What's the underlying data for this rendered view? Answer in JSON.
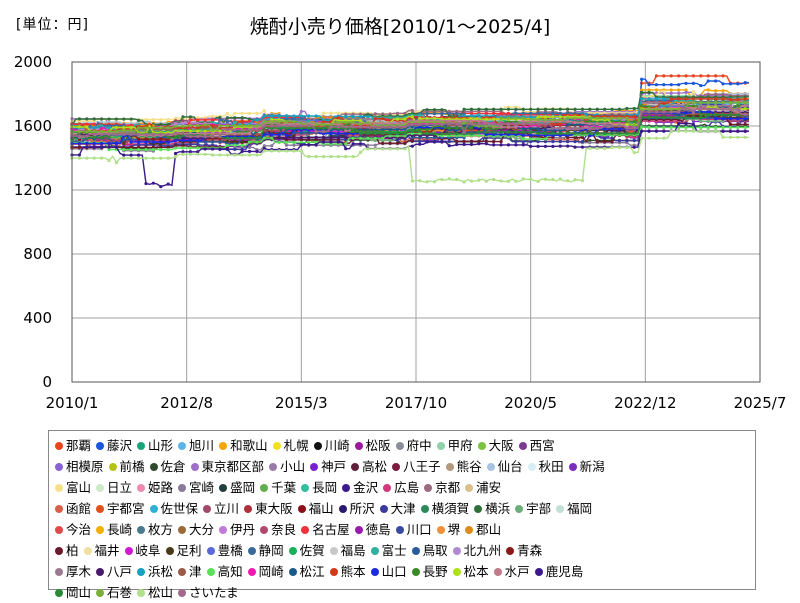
{
  "chart_data": {
    "type": "line",
    "title": "焼酎小売り価格[2010/1～2025/4]",
    "unit_label": "[単位：円]",
    "ylim": [
      0,
      2000
    ],
    "xlim": [
      2010.0,
      2025.5
    ],
    "y_ticks": [
      0,
      400,
      800,
      1200,
      1600,
      2000
    ],
    "x_ticks": [
      {
        "label": "2010/1",
        "value": 2010.0
      },
      {
        "label": "2012/8",
        "value": 2012.583
      },
      {
        "label": "2015/3",
        "value": 2015.167
      },
      {
        "label": "2017/10",
        "value": 2017.75
      },
      {
        "label": "2020/5",
        "value": 2020.333
      },
      {
        "label": "2022/12",
        "value": 2022.917
      },
      {
        "label": "2025/7",
        "value": 2025.5
      }
    ],
    "series": [
      {
        "name": "那覇",
        "color": "#e8451f",
        "base": 1620,
        "late": 1890
      },
      {
        "name": "藤沢",
        "color": "#1a56db",
        "base": 1560,
        "late": 1880
      },
      {
        "name": "山形",
        "color": "#1aa37a",
        "base": 1600,
        "late": 1720
      },
      {
        "name": "旭川",
        "color": "#5ab4e8",
        "base": 1580,
        "late": 1700
      },
      {
        "name": "和歌山",
        "color": "#f5a400",
        "base": 1640,
        "late": 1800
      },
      {
        "name": "札幌",
        "color": "#f0e020",
        "base": 1600,
        "late": 1760
      },
      {
        "name": "川崎",
        "color": "#111111",
        "base": 1580,
        "late": 1740
      },
      {
        "name": "松阪",
        "color": "#9b1a9b",
        "base": 1530,
        "late": 1650
      },
      {
        "name": "府中",
        "color": "#8a8f99",
        "base": 1570,
        "late": 1690
      },
      {
        "name": "甲府",
        "color": "#8fd1a8",
        "base": 1620,
        "late": 1760
      },
      {
        "name": "大阪",
        "color": "#7cc242",
        "base": 1560,
        "late": 1700
      },
      {
        "name": "西宮",
        "color": "#7b3b8f",
        "base": 1540,
        "late": 1660
      },
      {
        "name": "相模原",
        "color": "#8a63d2",
        "base": 1590,
        "late": 1720
      },
      {
        "name": "前橋",
        "color": "#b5c21a",
        "base": 1610,
        "late": 1740
      },
      {
        "name": "佐倉",
        "color": "#2f4a2f",
        "base": 1500,
        "late": 1620
      },
      {
        "name": "東京都区部",
        "color": "#a070c8",
        "base": 1650,
        "late": 1800
      },
      {
        "name": "小山",
        "color": "#9a7aa8",
        "base": 1570,
        "late": 1700
      },
      {
        "name": "神戸",
        "color": "#7a1fd1",
        "base": 1540,
        "late": 1680
      },
      {
        "name": "高松",
        "color": "#5e1f3b",
        "base": 1600,
        "late": 1730
      },
      {
        "name": "八王子",
        "color": "#7b1a3f",
        "base": 1620,
        "late": 1750
      },
      {
        "name": "熊谷",
        "color": "#b39a7f",
        "base": 1550,
        "late": 1670
      },
      {
        "name": "仙台",
        "color": "#a8c4e0",
        "base": 1630,
        "late": 1780
      },
      {
        "name": "秋田",
        "color": "#d8eef5",
        "base": 1580,
        "late": 1710
      },
      {
        "name": "新潟",
        "color": "#7a2dbf",
        "base": 1510,
        "late": 1640
      },
      {
        "name": "富山",
        "color": "#f5e08a",
        "base": 1660,
        "late": 1790
      },
      {
        "name": "日立",
        "color": "#cfe8c8",
        "base": 1570,
        "late": 1690
      },
      {
        "name": "姫路",
        "color": "#f08ab0",
        "base": 1590,
        "late": 1720
      },
      {
        "name": "宮崎",
        "color": "#8a7a9a",
        "base": 1480,
        "late": 1600
      },
      {
        "name": "盛岡",
        "color": "#1f3f3a",
        "base": 1550,
        "late": 1680
      },
      {
        "name": "千葉",
        "color": "#5fb04a",
        "base": 1600,
        "late": 1740
      },
      {
        "name": "長岡",
        "color": "#2fbf9f",
        "base": 1560,
        "late": 1690
      },
      {
        "name": "金沢",
        "color": "#3a1a8f",
        "base": 1620,
        "late": 1760
      },
      {
        "name": "広島",
        "color": "#d03a7a",
        "base": 1530,
        "late": 1660
      },
      {
        "name": "京都",
        "color": "#9a6a7f",
        "base": 1640,
        "late": 1770
      },
      {
        "name": "浦安",
        "color": "#d8c08a",
        "base": 1580,
        "late": 1710
      },
      {
        "name": "函館",
        "color": "#d8604a",
        "base": 1500,
        "late": 1630
      },
      {
        "name": "宇都宮",
        "color": "#e0501a",
        "base": 1560,
        "late": 1690
      },
      {
        "name": "佐世保",
        "color": "#2fb0d8",
        "base": 1600,
        "late": 1730
      },
      {
        "name": "立川",
        "color": "#a04a6a",
        "base": 1620,
        "late": 1750
      },
      {
        "name": "東大阪",
        "color": "#b0303a",
        "base": 1540,
        "late": 1670
      },
      {
        "name": "福山",
        "color": "#8a0f1a",
        "base": 1580,
        "late": 1700
      },
      {
        "name": "所沢",
        "color": "#2a1a6f",
        "base": 1610,
        "late": 1740
      },
      {
        "name": "大津",
        "color": "#3a3a9f",
        "base": 1490,
        "late": 1610
      },
      {
        "name": "横須賀",
        "color": "#2a8a5a",
        "base": 1570,
        "late": 1700
      },
      {
        "name": "横浜",
        "color": "#2f6f3a",
        "base": 1650,
        "late": 1780
      },
      {
        "name": "宇部",
        "color": "#6fae7a",
        "base": 1520,
        "late": 1650
      },
      {
        "name": "福岡",
        "color": "#c0e0d8",
        "base": 1590,
        "late": 1720
      },
      {
        "name": "今治",
        "color": "#e04a4a",
        "base": 1560,
        "late": 1690
      },
      {
        "name": "長崎",
        "color": "#f0b000",
        "base": 1610,
        "late": 1740
      },
      {
        "name": "枚方",
        "color": "#4a7a8f",
        "base": 1540,
        "late": 1670
      },
      {
        "name": "大分",
        "color": "#9a6a3a",
        "base": 1580,
        "late": 1700
      },
      {
        "name": "伊丹",
        "color": "#c07ad8",
        "base": 1600,
        "late": 1730
      },
      {
        "name": "奈良",
        "color": "#b04a6a",
        "base": 1530,
        "late": 1660
      },
      {
        "name": "名古屋",
        "color": "#f0303a",
        "base": 1620,
        "late": 1750
      },
      {
        "name": "徳島",
        "color": "#9a1ab0",
        "base": 1550,
        "late": 1680
      },
      {
        "name": "川口",
        "color": "#3a4a9f",
        "base": 1590,
        "late": 1720
      },
      {
        "name": "堺",
        "color": "#f0903a",
        "base": 1570,
        "late": 1700
      },
      {
        "name": "郡山",
        "color": "#e08a1a",
        "base": 1610,
        "late": 1740
      },
      {
        "name": "柏",
        "color": "#6a1a2a",
        "base": 1500,
        "late": 1630
      },
      {
        "name": "福井",
        "color": "#f0e0a0",
        "base": 1580,
        "late": 1710
      },
      {
        "name": "岐阜",
        "color": "#d01ad0",
        "base": 1560,
        "late": 1690
      },
      {
        "name": "足利",
        "color": "#4a3a1a",
        "base": 1540,
        "late": 1670
      },
      {
        "name": "豊橋",
        "color": "#5a6ad8",
        "base": 1600,
        "late": 1730
      },
      {
        "name": "静岡",
        "color": "#3a6a9a",
        "base": 1620,
        "late": 1750
      },
      {
        "name": "佐賀",
        "color": "#1ab05a",
        "base": 1570,
        "late": 1700
      },
      {
        "name": "福島",
        "color": "#c8c8c8",
        "base": 1590,
        "late": 1720
      },
      {
        "name": "富士",
        "color": "#2fb0a0",
        "base": 1610,
        "late": 1740
      },
      {
        "name": "鳥取",
        "color": "#2a5a9a",
        "base": 1520,
        "late": 1650
      },
      {
        "name": "北九州",
        "color": "#b08ad0",
        "base": 1580,
        "late": 1710
      },
      {
        "name": "青森",
        "color": "#8a1a1a",
        "base": 1560,
        "late": 1690
      },
      {
        "name": "厚木",
        "color": "#9a7a8f",
        "base": 1600,
        "late": 1730
      },
      {
        "name": "八戸",
        "color": "#4a1a6a",
        "base": 1540,
        "late": 1670
      },
      {
        "name": "浜松",
        "color": "#1aa0c0",
        "base": 1620,
        "late": 1750
      },
      {
        "name": "津",
        "color": "#9a5a4a",
        "base": 1580,
        "late": 1700
      },
      {
        "name": "高知",
        "color": "#5ae05a",
        "base": 1500,
        "late": 1580
      },
      {
        "name": "岡崎",
        "color": "#f01ab0",
        "base": 1590,
        "late": 1720
      },
      {
        "name": "松江",
        "color": "#1a5a8a",
        "base": 1560,
        "late": 1690
      },
      {
        "name": "熊本",
        "color": "#d03a1a",
        "base": 1610,
        "late": 1740
      },
      {
        "name": "山口",
        "color": "#1a2ae0",
        "base": 1540,
        "late": 1670
      },
      {
        "name": "長野",
        "color": "#3a8a2a",
        "base": 1570,
        "late": 1700
      },
      {
        "name": "松本",
        "color": "#b0e01a",
        "base": 1600,
        "late": 1730
      },
      {
        "name": "水戸",
        "color": "#c07a8a",
        "base": 1580,
        "late": 1710
      },
      {
        "name": "鹿児島",
        "color": "#3a1a8a",
        "base": 1460,
        "late": 1590
      },
      {
        "name": "岡山",
        "color": "#2a8a3a",
        "base": 1550,
        "late": 1680
      },
      {
        "name": "石巻",
        "color": "#7ab03a",
        "base": 1590,
        "late": 1720
      },
      {
        "name": "松山",
        "color": "#b0e08a",
        "base": 1420,
        "late": 1540
      },
      {
        "name": "さいたま",
        "color": "#a06a8a",
        "base": 1560,
        "late": 1690
      }
    ]
  }
}
